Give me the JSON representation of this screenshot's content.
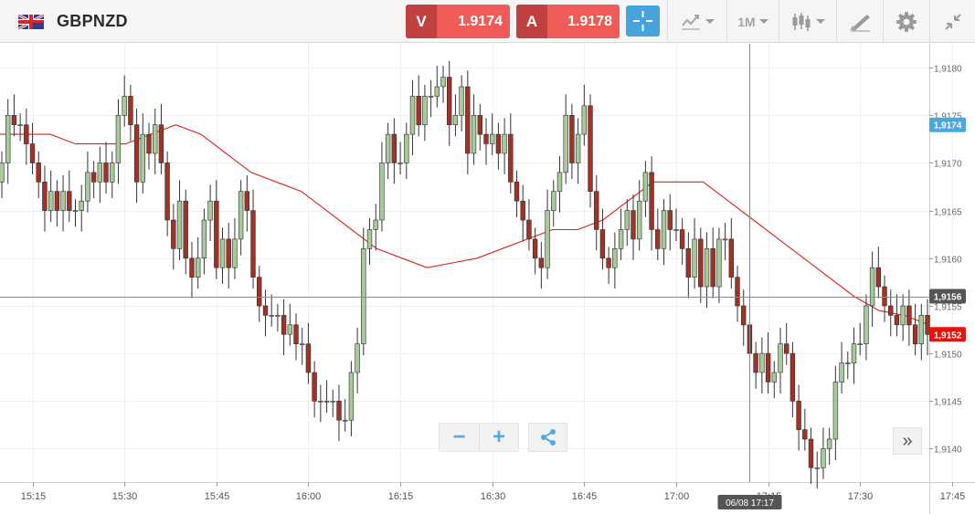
{
  "toolbar": {
    "symbol": "GBPNZD",
    "sell": {
      "letter": "V",
      "price": "1.9174"
    },
    "buy": {
      "letter": "A",
      "price": "1.9178"
    },
    "timeframe": "1M"
  },
  "colors": {
    "bull": "#a8c99a",
    "bear": "#a03226",
    "wick": "#333333",
    "ma_line": "#d9221c",
    "price_tag_blue": "#4aa8e0",
    "price_tag_red": "#e8110d",
    "crosshair_tag": "#555555",
    "sell_bg": "#ef5b57",
    "accent": "#47a3de"
  },
  "icons": {
    "flag": "uk-flag-icon",
    "crosshair": "crosshair-icon",
    "indicators": "line-chart-icon",
    "chart_type": "candlestick-icon",
    "draw": "pencil-ruler-icon",
    "settings": "gear-icon",
    "fullscreen": "collapse-icon",
    "zoom_out": "minus-icon",
    "zoom_in": "plus-icon",
    "share": "share-icon",
    "scroll_latest": "double-chevron-right-icon"
  },
  "zoom": {
    "minus": "−",
    "plus": "+"
  },
  "more_label": "»",
  "chart_data": {
    "type": "candlestick",
    "interval": "1M",
    "ylim": [
      1.91365,
      1.91825
    ],
    "y_ticks": [
      "1,9140",
      "1,9145",
      "1,9150",
      "1,9155",
      "1,9160",
      "1,9165",
      "1,9170",
      "1,9175",
      "1,9180"
    ],
    "x_ticks": [
      "15:15",
      "15:30",
      "15:45",
      "16:00",
      "16:15",
      "16:30",
      "16:45",
      "17:00",
      "17:15",
      "17:30",
      "17:45"
    ],
    "price_tags": {
      "ask": "1,9174",
      "crosshair": "1,9156",
      "bid": "1,9152"
    },
    "crosshair_time": "06/08 17:17",
    "closes": [
      1.917,
      1.9175,
      1.9174,
      1.9174,
      1.9172,
      1.917,
      1.9168,
      1.9165,
      1.9167,
      1.9165,
      1.9167,
      1.9165,
      1.9165,
      1.9166,
      1.9169,
      1.9168,
      1.917,
      1.9168,
      1.917,
      1.9175,
      1.9177,
      1.9174,
      1.9168,
      1.9173,
      1.9171,
      1.9174,
      1.917,
      1.9164,
      1.9161,
      1.9166,
      1.916,
      1.9158,
      1.916,
      1.9164,
      1.9166,
      1.9159,
      1.9162,
      1.9159,
      1.9162,
      1.9167,
      1.9165,
      1.9158,
      1.9155,
      1.9154,
      1.9154,
      1.9154,
      1.9152,
      1.9153,
      1.9151,
      1.9151,
      1.9148,
      1.9145,
      1.9145,
      1.9145,
      1.9145,
      1.9143,
      1.9143,
      1.9148,
      1.9151,
      1.9161,
      1.9163,
      1.9164,
      1.917,
      1.9173,
      1.917,
      1.917,
      1.9173,
      1.9177,
      1.9174,
      1.9177,
      1.9177,
      1.9178,
      1.9179,
      1.9174,
      1.9175,
      1.9178,
      1.9171,
      1.9175,
      1.9173,
      1.9172,
      1.9173,
      1.9171,
      1.9173,
      1.9168,
      1.9166,
      1.9164,
      1.9162,
      1.916,
      1.9159,
      1.9165,
      1.9167,
      1.9169,
      1.9175,
      1.917,
      1.9173,
      1.9176,
      1.9167,
      1.9163,
      1.916,
      1.9159,
      1.9161,
      1.9163,
      1.9165,
      1.9162,
      1.9166,
      1.9169,
      1.9163,
      1.9161,
      1.9165,
      1.9163,
      1.9163,
      1.9161,
      1.9158,
      1.9162,
      1.9157,
      1.9161,
      1.9157,
      1.9162,
      1.9162,
      1.9158,
      1.9155,
      1.9153,
      1.915,
      1.9148,
      1.915,
      1.9147,
      1.9148,
      1.9151,
      1.915,
      1.9145,
      1.9142,
      1.9141,
      1.9138,
      1.9138,
      1.914,
      1.9141,
      1.9147,
      1.9149,
      1.9149,
      1.9151,
      1.9151,
      1.9155,
      1.9159,
      1.9157,
      1.9155,
      1.9154,
      1.9153,
      1.9155,
      1.9153,
      1.9151,
      1.9154,
      1.9152
    ],
    "moving_average": [
      1.9173,
      1.9173,
      1.9173,
      1.9172,
      1.9172,
      1.9172,
      1.9173,
      1.9174,
      1.9173,
      1.9171,
      1.9169,
      1.9168,
      1.9167,
      1.9165,
      1.9163,
      1.9161,
      1.916,
      1.9159,
      1.91595,
      1.916,
      1.9161,
      1.9162,
      1.9163,
      1.9163,
      1.9164,
      1.9166,
      1.9168,
      1.9168,
      1.9168,
      1.9166,
      1.9164,
      1.9162,
      1.916,
      1.9158,
      1.9156,
      1.91545,
      1.9154,
      1.9153
    ]
  }
}
